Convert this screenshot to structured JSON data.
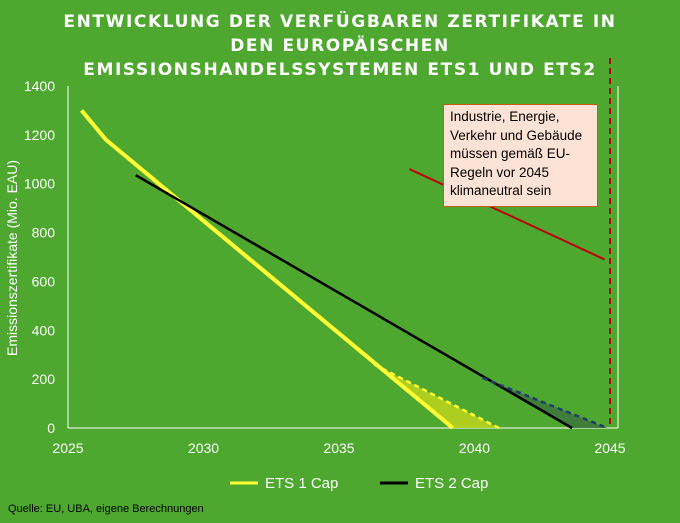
{
  "title_lines": [
    "ENTWICKLUNG DER VERFÜGBAREN ZERTIFIKATE IN",
    "DEN EUROPÄISCHEN",
    "EMISSIONSHANDELSSYSTEMEN ETS1 UND ETS2"
  ],
  "source": "Quelle: EU, UBA, eigene Berechnungen",
  "colors": {
    "background": "#4ea72e",
    "ets1": "#ffff33",
    "ets2": "#000000",
    "ets1_fill": "#b8d11e",
    "ets2_fill": "#3e7a3c",
    "ets2_dashed": "#1f3b73",
    "target_line": "#c00000",
    "annotation_bg": "#fde3d6"
  },
  "annotation": {
    "lines": [
      "Industrie, Energie,",
      "Verkehr und Gebäude",
      "müssen gemäß EU-",
      "Regeln vor 2045",
      "klimaneutral sein"
    ]
  },
  "chart_data": {
    "type": "line",
    "title": "ENTWICKLUNG DER VERFÜGBAREN ZERTIFIKATE IN DEN EUROPÄISCHEN EMISSIONSHANDELSSYSTEMEN ETS1 UND ETS2",
    "xlabel": "",
    "ylabel": "Emissionszertifikate (Mio. EAU)",
    "xlim": [
      2025,
      2045
    ],
    "ylim": [
      0,
      1400
    ],
    "x_ticks": [
      2025,
      2030,
      2035,
      2040,
      2045
    ],
    "x_tick_labels": [
      "2025",
      "2030",
      "2035",
      "2040",
      "2045"
    ],
    "y_ticks": [
      0,
      200,
      400,
      600,
      800,
      1000,
      1200,
      1400
    ],
    "y_tick_labels": [
      "0",
      "200",
      "400",
      "600",
      "800",
      "1000",
      "1200",
      "1400"
    ],
    "legend_position": "bottom",
    "series": [
      {
        "name": "ETS 1 Cap",
        "x": [
          2025.5,
          2026.4,
          2039.2
        ],
        "y": [
          1300,
          1180,
          0
        ]
      },
      {
        "name": "ETS 2 Cap",
        "x": [
          2027.5,
          2043.6
        ],
        "y": [
          1035,
          0
        ]
      }
    ],
    "extensions": [
      {
        "series": "ETS 1 Cap",
        "style": "dashed",
        "x": [
          2036.3,
          2040.9
        ],
        "y": [
          260,
          0
        ]
      },
      {
        "series": "ETS 2 Cap",
        "style": "dashed",
        "x": [
          2040.3,
          2044.9
        ],
        "y": [
          205,
          0
        ]
      }
    ],
    "target_year": 2045,
    "target_arrow": {
      "x": [
        2037.6,
        2044.8
      ],
      "y": [
        1060,
        690
      ]
    }
  }
}
